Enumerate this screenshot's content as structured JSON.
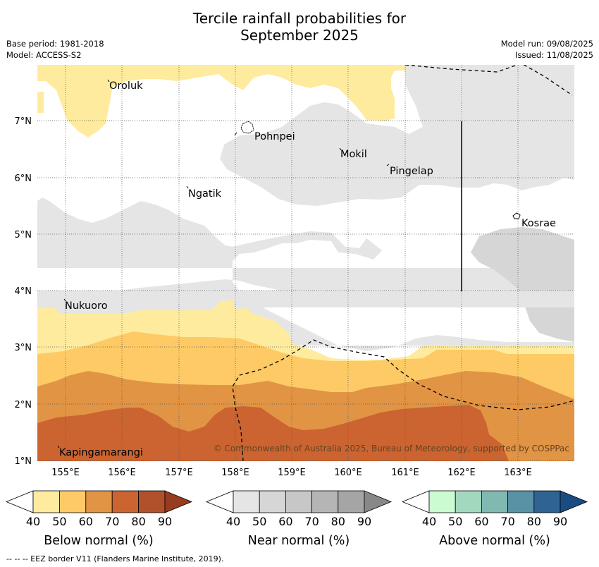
{
  "title_line1": "Tercile rainfall probabilities for",
  "title_line2": "September 2025",
  "meta": {
    "base_period": "Base period: 1981-2018",
    "model": "Model: ACCESS-S2",
    "model_run": "Model run: 09/08/2025",
    "issued": "Issued: 11/08/2025"
  },
  "map": {
    "lon_range": [
      154.5,
      164.0
    ],
    "lat_range": [
      1.0,
      8.0
    ],
    "lon_ticks": [
      155,
      156,
      157,
      158,
      159,
      160,
      161,
      162,
      163
    ],
    "lat_ticks": [
      1,
      2,
      3,
      4,
      5,
      6,
      7
    ],
    "lon_tick_labels": [
      "155°E",
      "156°E",
      "157°E",
      "158°E",
      "159°E",
      "160°E",
      "161°E",
      "162°E",
      "163°E"
    ],
    "lat_tick_labels": [
      "1°N",
      "2°N",
      "3°N",
      "4°N",
      "5°N",
      "6°N",
      "7°N"
    ],
    "places": [
      {
        "name": "Oroluk",
        "lon": 155.75,
        "lat": 7.45
      },
      {
        "name": "Pohnpei",
        "lon": 158.2,
        "lat": 6.9
      },
      {
        "name": "Mokil",
        "lon": 159.8,
        "lat": 6.5
      },
      {
        "name": "Pingelap",
        "lon": 160.7,
        "lat": 6.2
      },
      {
        "name": "Ngatik",
        "lon": 157.1,
        "lat": 5.8
      },
      {
        "name": "Kosrae",
        "lon": 162.95,
        "lat": 5.3
      },
      {
        "name": "Nukuoro",
        "lon": 154.8,
        "lat": 3.85
      },
      {
        "name": "Kapingamarangi",
        "lon": 154.85,
        "lat": 1.25
      }
    ],
    "copyright": "© Commonwealth of Australia 2025, Bureau of Meteorology, supported by COSPPac"
  },
  "colorbars": [
    {
      "title": "Below normal (%)",
      "labels": [
        "40",
        "50",
        "60",
        "70",
        "80",
        "90"
      ],
      "colors": [
        "#ffffff",
        "#feeb9e",
        "#fdca65",
        "#e19444",
        "#cb6431",
        "#b1512c",
        "#973c20"
      ]
    },
    {
      "title": "Near normal (%)",
      "labels": [
        "40",
        "50",
        "60",
        "70",
        "80",
        "90"
      ],
      "colors": [
        "#ffffff",
        "#e5e5e5",
        "#d6d6d6",
        "#c7c7c7",
        "#b5b5b5",
        "#a5a5a5",
        "#888888"
      ]
    },
    {
      "title": "Above normal (%)",
      "labels": [
        "40",
        "50",
        "60",
        "70",
        "80",
        "90"
      ],
      "colors": [
        "#ffffff",
        "#cbfbd0",
        "#a2d8be",
        "#80b8b2",
        "#5991a5",
        "#2f6394",
        "#194c80"
      ]
    }
  ],
  "footer": "--  --  -- EEZ border V11 (Flanders Marine Institute, 2019)."
}
